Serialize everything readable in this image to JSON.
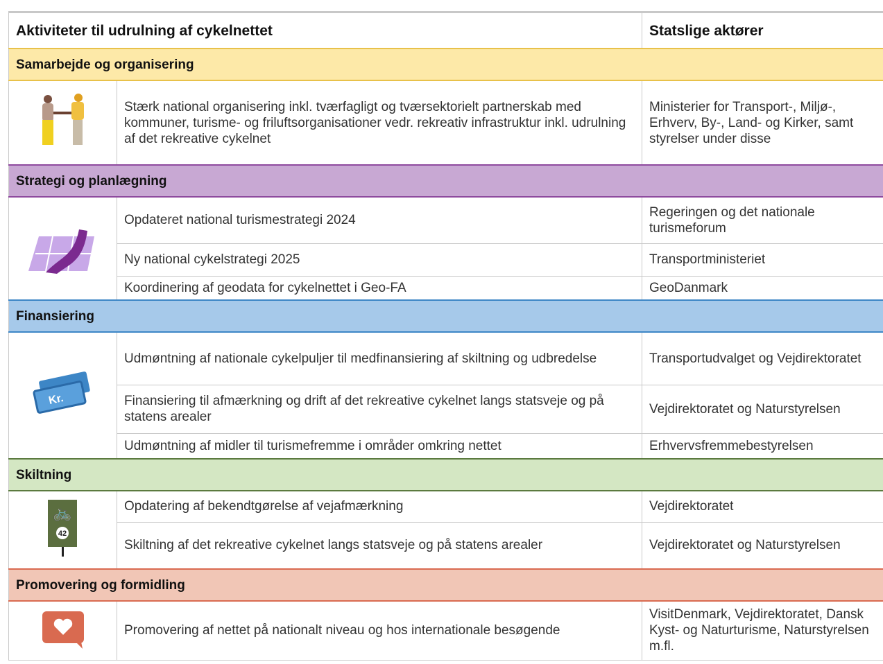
{
  "header": {
    "activities": "Aktiviteter til udrulning af cykelnettet",
    "actors": "Statslige aktører"
  },
  "sections": [
    {
      "title": "Samarbejde og organisering",
      "rows": [
        {
          "activity": "Stærk national organisering inkl. tværfagligt og tværsektorielt partnerskab med kommuner, turisme- og friluftsorganisationer vedr. rekreativ infrastruktur inkl. udrulning af det rekreative cykelnet",
          "actors": "Ministerier for Transport-, Miljø-, Erhverv, By-, Land- og Kirker, samt styrelser under disse"
        }
      ]
    },
    {
      "title": "Strategi og planlægning",
      "rows": [
        {
          "activity": "Opdateret national turismestrategi 2024",
          "actors": "Regeringen og det nationale turismeforum"
        },
        {
          "activity": "Ny national cykelstrategi 2025",
          "actors": "Transportministeriet"
        },
        {
          "activity": "Koordinering af geodata for cykelnettet i Geo-FA",
          "actors": "GeoDanmark"
        }
      ]
    },
    {
      "title": "Finansiering",
      "icon_text": "Kr.",
      "rows": [
        {
          "activity": "Udmøntning af nationale cykelpuljer til medfinansiering af skiltning og udbredelse",
          "actors": "Transportudvalget og Vejdirektoratet"
        },
        {
          "activity": "Finansiering til afmærkning og drift af det rekreative cykelnet langs statsveje og på statens arealer",
          "actors": "Vejdirektoratet og Naturstyrelsen"
        },
        {
          "activity": "Udmøntning af midler til turismefremme i områder omkring nettet",
          "actors": "Erhvervsfremmebestyrelsen"
        }
      ]
    },
    {
      "title": "Skiltning",
      "icon_text": "42",
      "rows": [
        {
          "activity": "Opdatering af bekendtgørelse af vejafmærkning",
          "actors": "Vejdirektoratet"
        },
        {
          "activity": "Skiltning af det rekreative cykelnet langs statsveje og på statens arealer",
          "actors": "Vejdirektoratet og Naturstyrelsen"
        }
      ]
    },
    {
      "title": "Promovering og formidling",
      "rows": [
        {
          "activity": "Promovering af nettet på nationalt niveau og hos internationale besøgende",
          "actors": "VisitDenmark, Vejdirektoratet, Dansk Kyst- og Naturturisme, Naturstyrelsen m.fl."
        }
      ]
    }
  ]
}
